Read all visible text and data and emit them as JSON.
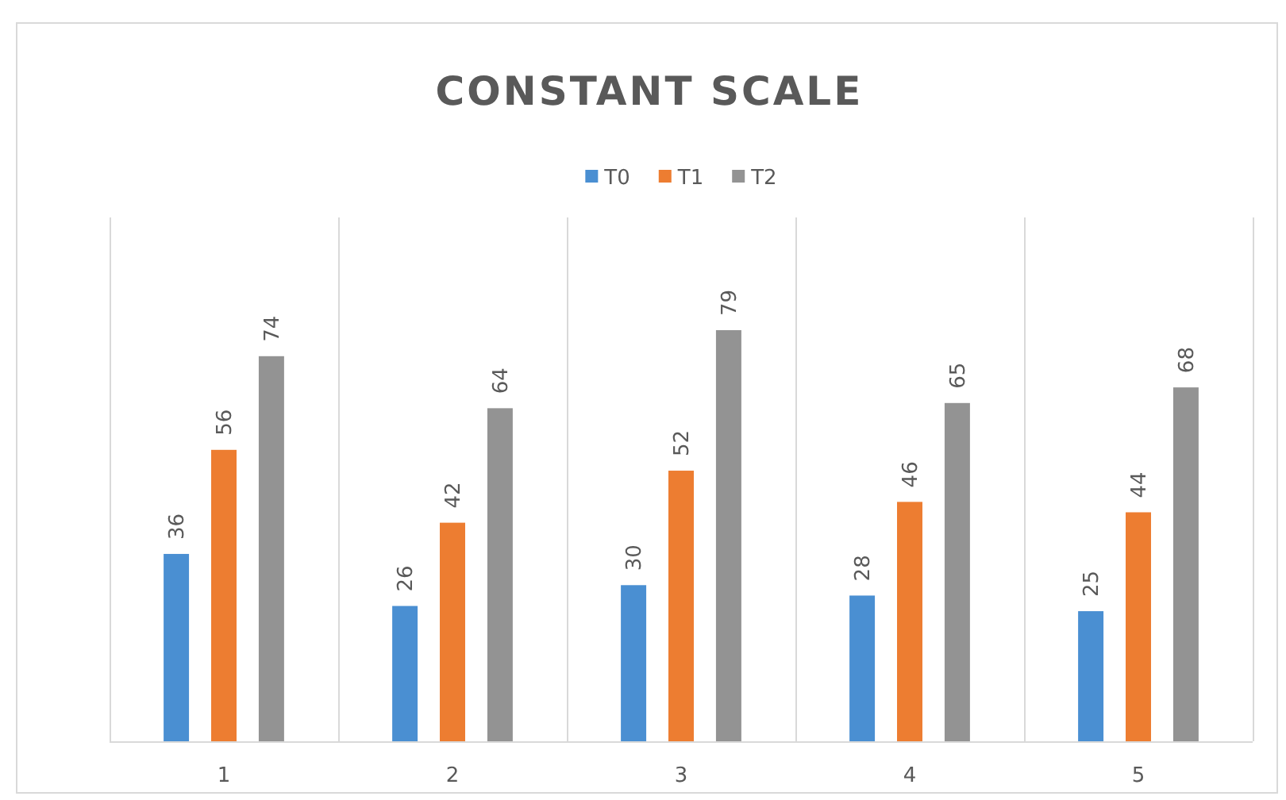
{
  "chart_data": {
    "type": "bar",
    "title": "CONSTANT SCALE",
    "categories": [
      "1",
      "2",
      "3",
      "4",
      "5"
    ],
    "series": [
      {
        "name": "T0",
        "color": "#4a8fd2",
        "values": [
          36,
          26,
          30,
          28,
          25
        ]
      },
      {
        "name": "T1",
        "color": "#ed7d31",
        "values": [
          56,
          42,
          52,
          46,
          44
        ]
      },
      {
        "name": "T2",
        "color": "#939393",
        "values": [
          74,
          64,
          79,
          65,
          68
        ]
      }
    ],
    "data_labels": true,
    "legend": "top",
    "grid": "x"
  }
}
